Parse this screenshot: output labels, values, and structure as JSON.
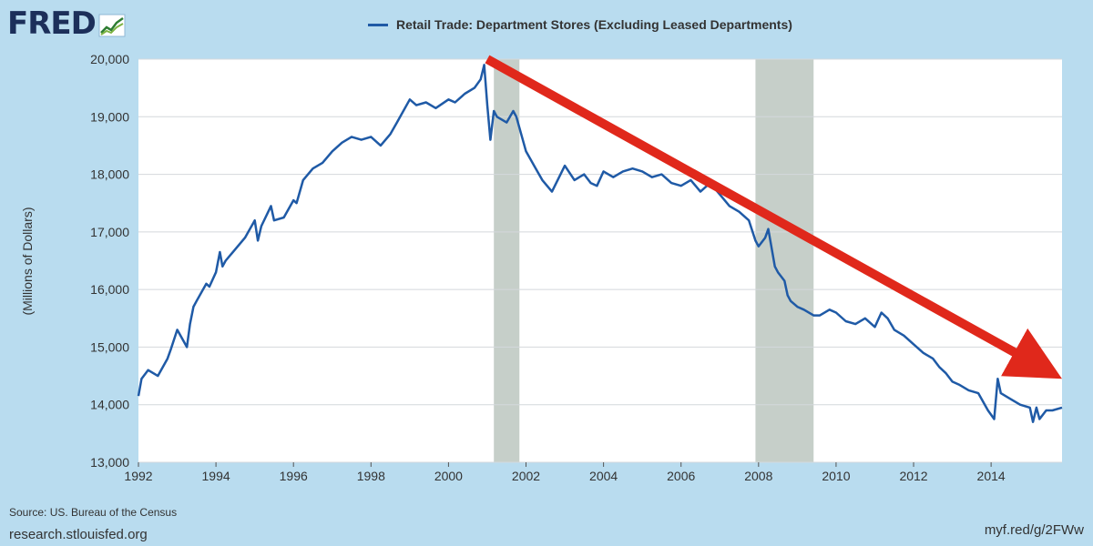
{
  "logo": {
    "text": "FRED",
    "icon": "chart-line-icon"
  },
  "colors": {
    "series": "#1f5aa6",
    "recession": "#c6cfc9",
    "arrow": "#e0281b",
    "grid": "#d4d8dc",
    "background": "#b9dcef"
  },
  "footer": {
    "source": "Source: US. Bureau of the Census",
    "site": "research.stlouisfed.org",
    "short_url": "myf.red/g/2FWw"
  },
  "chart_data": {
    "type": "line",
    "title": "",
    "ylabel": "(Millions of Dollars)",
    "xlabel": "",
    "xlim": [
      1992,
      2015.83
    ],
    "ylim": [
      13000,
      20000
    ],
    "grid": true,
    "legend_position": "top-center",
    "x_ticks": [
      "1992",
      "1994",
      "1996",
      "1998",
      "2000",
      "2002",
      "2004",
      "2006",
      "2008",
      "2010",
      "2012",
      "2014"
    ],
    "y_ticks": [
      "13,000",
      "14,000",
      "15,000",
      "16,000",
      "17,000",
      "18,000",
      "19,000",
      "20,000"
    ],
    "recessions": [
      [
        2001.17,
        2001.83
      ],
      [
        2007.92,
        2009.42
      ]
    ],
    "series": [
      {
        "name": "Retail Trade: Department Stores (Excluding Leased Departments)",
        "x": [
          1992.0,
          1992.08,
          1992.25,
          1992.5,
          1992.75,
          1992.83,
          1993.0,
          1993.25,
          1993.33,
          1993.42,
          1993.5,
          1993.75,
          1993.83,
          1994.0,
          1994.1,
          1994.17,
          1994.25,
          1994.5,
          1994.75,
          1995.0,
          1995.08,
          1995.17,
          1995.42,
          1995.5,
          1995.75,
          1996.0,
          1996.08,
          1996.25,
          1996.5,
          1996.75,
          1997.0,
          1997.25,
          1997.5,
          1997.75,
          1998.0,
          1998.25,
          1998.5,
          1998.67,
          1999.0,
          1999.17,
          1999.42,
          1999.67,
          2000.0,
          2000.17,
          2000.42,
          2000.67,
          2000.83,
          2000.92,
          2001.0,
          2001.08,
          2001.17,
          2001.25,
          2001.5,
          2001.67,
          2001.75,
          2002.0,
          2002.25,
          2002.42,
          2002.67,
          2003.0,
          2003.25,
          2003.5,
          2003.67,
          2003.83,
          2004.0,
          2004.25,
          2004.5,
          2004.75,
          2005.0,
          2005.25,
          2005.5,
          2005.75,
          2006.0,
          2006.25,
          2006.5,
          2006.75,
          2007.0,
          2007.25,
          2007.5,
          2007.75,
          2007.92,
          2008.0,
          2008.17,
          2008.25,
          2008.42,
          2008.5,
          2008.67,
          2008.75,
          2008.83,
          2009.0,
          2009.17,
          2009.42,
          2009.58,
          2009.83,
          2010.0,
          2010.25,
          2010.5,
          2010.75,
          2011.0,
          2011.17,
          2011.33,
          2011.5,
          2011.75,
          2012.0,
          2012.25,
          2012.5,
          2012.67,
          2012.83,
          2013.0,
          2013.17,
          2013.42,
          2013.67,
          2013.92,
          2014.08,
          2014.17,
          2014.25,
          2014.5,
          2014.75,
          2015.0,
          2015.08,
          2015.17,
          2015.25,
          2015.42,
          2015.58,
          2015.83
        ],
        "values": [
          14150,
          14450,
          14600,
          14500,
          14800,
          14950,
          15300,
          15000,
          15400,
          15700,
          15800,
          16100,
          16050,
          16300,
          16650,
          16400,
          16500,
          16700,
          16900,
          17200,
          16850,
          17100,
          17450,
          17200,
          17250,
          17550,
          17500,
          17900,
          18100,
          18200,
          18400,
          18550,
          18650,
          18600,
          18650,
          18500,
          18700,
          18900,
          19300,
          19200,
          19250,
          19150,
          19300,
          19250,
          19400,
          19500,
          19650,
          19900,
          19200,
          18600,
          19100,
          19000,
          18900,
          19100,
          19000,
          18400,
          18100,
          17900,
          17700,
          18150,
          17900,
          18000,
          17850,
          17800,
          18050,
          17950,
          18050,
          18100,
          18050,
          17950,
          18000,
          17850,
          17800,
          17900,
          17700,
          17850,
          17650,
          17450,
          17350,
          17200,
          16850,
          16750,
          16900,
          17050,
          16400,
          16300,
          16150,
          15900,
          15800,
          15700,
          15650,
          15550,
          15550,
          15650,
          15600,
          15450,
          15400,
          15500,
          15350,
          15600,
          15500,
          15300,
          15200,
          15050,
          14900,
          14800,
          14650,
          14550,
          14400,
          14350,
          14250,
          14200,
          13900,
          13750,
          14450,
          14200,
          14100,
          14000,
          13950,
          13700,
          13950,
          13750,
          13900,
          13900,
          13950
        ]
      }
    ],
    "annotation": {
      "type": "trend-arrow",
      "from": [
        2001.0,
        20000
      ],
      "to": [
        2015.83,
        14450
      ]
    }
  }
}
